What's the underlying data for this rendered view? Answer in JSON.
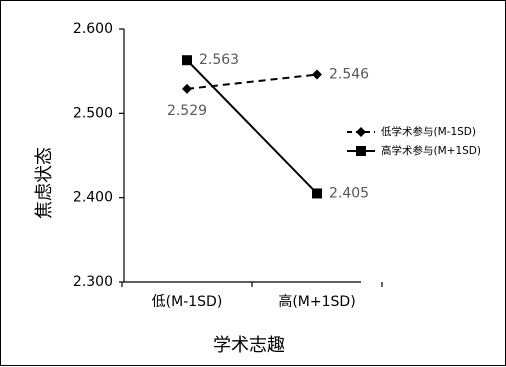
{
  "chart_data": {
    "type": "line",
    "title": "",
    "xlabel": "学术志趣",
    "ylabel": "焦虑状态",
    "categories": [
      "低(M-1SD)",
      "高(M+1SD)"
    ],
    "ylim": [
      2.3,
      2.6
    ],
    "yticks": [
      "2.300",
      "2.400",
      "2.500",
      "2.600"
    ],
    "grid": false,
    "legend_position": "right",
    "series": [
      {
        "name": "低学术参与(M-1SD)",
        "values": [
          2.529,
          2.546
        ],
        "labels": [
          "2.529",
          "2.546"
        ],
        "marker": "diamond",
        "line_style": "dashed",
        "color": "#000000"
      },
      {
        "name": "高学术参与(M+1SD)",
        "values": [
          2.563,
          2.405
        ],
        "labels": [
          "2.563",
          "2.405"
        ],
        "marker": "square",
        "line_style": "solid",
        "color": "#000000"
      }
    ]
  }
}
